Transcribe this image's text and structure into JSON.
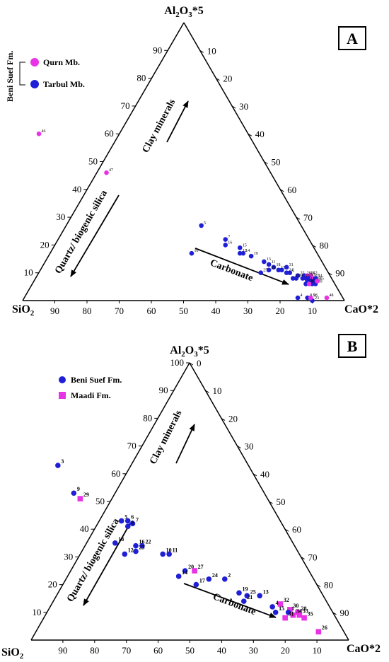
{
  "colors": {
    "blue": "#1f1fd6",
    "magenta": "#e832e6",
    "axis": "#000000"
  },
  "chart_data": [
    {
      "type": "ternary",
      "panel_label": "A",
      "apex_top": "Al2O3*5",
      "apex_left": "SiO2",
      "apex_right": "CaO*2",
      "top_ticks": [
        "10",
        "20",
        "30",
        "40",
        "50",
        "60",
        "70",
        "80",
        "90"
      ],
      "left_ticks": [
        "10",
        "20",
        "30",
        "40",
        "50",
        "60",
        "70",
        "80",
        "90"
      ],
      "bottom_ticks": [
        "90",
        "80",
        "70",
        "60",
        "50",
        "40",
        "30",
        "20",
        "10"
      ],
      "arrows": [
        "Clay minerals",
        "Quartz/ biogenic silica",
        "Carbonate"
      ],
      "legend": {
        "group": "Beni Suef Fm.",
        "items": [
          {
            "name": "Qurn Mb.",
            "marker": "circle",
            "color": "magenta"
          },
          {
            "name": "Tarbul Mb.",
            "marker": "circle",
            "color": "blue"
          }
        ]
      },
      "points": [
        {
          "id": "46",
          "a": 60,
          "s": 65,
          "c": "magenta"
        },
        {
          "id": "47",
          "a": 46,
          "s": 51,
          "c": "magenta"
        },
        {
          "id": "5",
          "a": 27,
          "s": 31,
          "c": "blue"
        },
        {
          "id": "7",
          "a": 22,
          "s": 26,
          "c": "blue"
        },
        {
          "id": "16",
          "a": 20,
          "s": 27,
          "c": "blue"
        },
        {
          "id": "15",
          "a": 19,
          "s": 23,
          "c": "blue"
        },
        {
          "id": "10",
          "a": 17,
          "s": 39,
          "c": "blue"
        },
        {
          "id": "12",
          "a": 17,
          "s": 24,
          "c": "blue"
        },
        {
          "id": "14",
          "a": 17,
          "s": 23,
          "c": "blue"
        },
        {
          "id": "19",
          "a": 16,
          "s": 21,
          "c": "blue"
        },
        {
          "id": "13",
          "a": 14,
          "s": 18,
          "c": "blue"
        },
        {
          "id": "11",
          "a": 13,
          "s": 17,
          "c": "blue"
        },
        {
          "id": "18",
          "a": 12,
          "s": 16,
          "c": "blue"
        },
        {
          "id": "25",
          "a": 10,
          "s": 21,
          "c": "blue"
        },
        {
          "id": "22",
          "a": 11,
          "s": 18,
          "c": "blue"
        },
        {
          "id": "3",
          "a": 11,
          "s": 14,
          "c": "blue"
        },
        {
          "id": "17",
          "a": 11,
          "s": 15,
          "c": "blue"
        },
        {
          "id": "31",
          "a": 12,
          "s": 12,
          "c": "blue"
        },
        {
          "id": "2",
          "a": 10,
          "s": 12,
          "c": "blue"
        },
        {
          "id": "24",
          "a": 10,
          "s": 13,
          "c": "blue"
        },
        {
          "id": "32",
          "a": 9,
          "s": 10,
          "c": "blue"
        },
        {
          "id": "26",
          "a": 9,
          "s": 8,
          "c": "blue"
        },
        {
          "id": "40",
          "a": 9,
          "s": 7,
          "c": "magenta"
        },
        {
          "id": "42",
          "a": 9,
          "s": 6,
          "c": "magenta"
        },
        {
          "id": "27",
          "a": 8,
          "s": 8,
          "c": "blue"
        },
        {
          "id": "29",
          "a": 8,
          "s": 11,
          "c": "blue"
        },
        {
          "id": "21",
          "a": 8,
          "s": 12,
          "c": "blue"
        },
        {
          "id": "30",
          "a": 8,
          "s": 9,
          "c": "blue"
        },
        {
          "id": "35",
          "a": 8,
          "s": 7,
          "c": "blue"
        },
        {
          "id": "37",
          "a": 8,
          "s": 6,
          "c": "magenta"
        },
        {
          "id": "38",
          "a": 7,
          "s": 6,
          "c": "blue"
        },
        {
          "id": "41",
          "a": 7,
          "s": 7,
          "c": "blue"
        },
        {
          "id": "44",
          "a": 8,
          "s": 5,
          "c": "blue"
        },
        {
          "id": "33",
          "a": 7,
          "s": 8,
          "c": "blue"
        },
        {
          "id": "34",
          "a": 6,
          "s": 9,
          "c": "blue"
        },
        {
          "id": "36",
          "a": 6,
          "s": 7,
          "c": "blue"
        },
        {
          "id": "39",
          "a": 6,
          "s": 6,
          "c": "blue"
        },
        {
          "id": "43",
          "a": 6,
          "s": 8,
          "c": "magenta"
        },
        {
          "id": "45",
          "a": 7,
          "s": 5,
          "c": "magenta"
        },
        {
          "id": "4",
          "a": 1,
          "s": 14,
          "c": "blue"
        },
        {
          "id": "28",
          "a": 1,
          "s": 10,
          "c": "blue"
        },
        {
          "id": "23",
          "a": 0,
          "s": 10,
          "c": "blue"
        },
        {
          "id": "8",
          "a": 1,
          "s": 11,
          "c": "blue"
        },
        {
          "id": "9",
          "a": 1,
          "s": 10,
          "c": "magenta"
        },
        {
          "id": "48",
          "a": 1,
          "s": 5,
          "c": "magenta"
        }
      ]
    },
    {
      "type": "ternary",
      "panel_label": "B",
      "apex_top": "Al2O3*5",
      "apex_left": "SiO2",
      "apex_right": "CaO*2",
      "top_ticks": [
        "0",
        "10",
        "20",
        "30",
        "40",
        "50",
        "60",
        "70",
        "80",
        "90"
      ],
      "left_ticks": [
        "10",
        "20",
        "30",
        "40",
        "50",
        "60",
        "70",
        "80",
        "90",
        "100"
      ],
      "bottom_ticks": [
        "90",
        "80",
        "70",
        "60",
        "50",
        "40",
        "30",
        "20",
        "10"
      ],
      "arrows": [
        "Clay minerals",
        "Quartz/ biogenic silica",
        "Carbonate"
      ],
      "legend": {
        "items": [
          {
            "name": "Beni Suef Fm.",
            "marker": "circle",
            "color": "blue"
          },
          {
            "name": "Maadi Fm.",
            "marker": "square",
            "color": "magenta"
          }
        ]
      },
      "points": [
        {
          "id": "3",
          "a": 63,
          "s": 60,
          "c": "blue"
        },
        {
          "id": "9",
          "a": 53,
          "s": 60,
          "c": "blue"
        },
        {
          "id": "29",
          "a": 51,
          "s": 59,
          "c": "magenta"
        },
        {
          "id": "5",
          "a": 43,
          "s": 50,
          "c": "blue"
        },
        {
          "id": "6",
          "a": 43,
          "s": 48,
          "c": "blue"
        },
        {
          "id": "7",
          "a": 42,
          "s": 47,
          "c": "blue"
        },
        {
          "id": "8",
          "a": 41,
          "s": 49,
          "c": "blue"
        },
        {
          "id": "18",
          "a": 35,
          "s": 56,
          "c": "blue"
        },
        {
          "id": "16",
          "a": 34,
          "s": 50,
          "c": "blue"
        },
        {
          "id": "22",
          "a": 34,
          "s": 48,
          "c": "blue"
        },
        {
          "id": "23",
          "a": 32,
          "s": 51,
          "c": "blue"
        },
        {
          "id": "12",
          "a": 31,
          "s": 55,
          "c": "blue"
        },
        {
          "id": "10",
          "a": 31,
          "s": 43,
          "c": "blue"
        },
        {
          "id": "11",
          "a": 31,
          "s": 41,
          "c": "blue"
        },
        {
          "id": "20",
          "a": 25,
          "s": 39,
          "c": "blue"
        },
        {
          "id": "27",
          "a": 25,
          "s": 36,
          "c": "magenta"
        },
        {
          "id": "14",
          "a": 23,
          "s": 42,
          "c": "blue"
        },
        {
          "id": "24",
          "a": 22,
          "s": 33,
          "c": "blue"
        },
        {
          "id": "2",
          "a": 22,
          "s": 28,
          "c": "blue"
        },
        {
          "id": "17",
          "a": 20,
          "s": 38,
          "c": "blue"
        },
        {
          "id": "19",
          "a": 17,
          "s": 26,
          "c": "blue"
        },
        {
          "id": "25",
          "a": 16,
          "s": 24,
          "c": "blue"
        },
        {
          "id": "13",
          "a": 16,
          "s": 20,
          "c": "blue"
        },
        {
          "id": "21",
          "a": 14,
          "s": 26,
          "c": "blue"
        },
        {
          "id": "32",
          "a": 13,
          "s": 15,
          "c": "magenta"
        },
        {
          "id": "4",
          "a": 12,
          "s": 18,
          "c": "blue"
        },
        {
          "id": "15",
          "a": 10,
          "s": 18,
          "c": "blue"
        },
        {
          "id": "30",
          "a": 11,
          "s": 13,
          "c": "magenta"
        },
        {
          "id": "1",
          "a": 10,
          "s": 14,
          "c": "blue"
        },
        {
          "id": "28",
          "a": 10,
          "s": 11,
          "c": "magenta"
        },
        {
          "id": "33",
          "a": 9,
          "s": 11,
          "c": "magenta"
        },
        {
          "id": "34",
          "a": 9,
          "s": 13,
          "c": "magenta"
        },
        {
          "id": "31",
          "a": 8,
          "s": 16,
          "c": "magenta"
        },
        {
          "id": "35",
          "a": 8,
          "s": 10,
          "c": "magenta"
        },
        {
          "id": "26",
          "a": 3,
          "s": 8,
          "c": "magenta"
        }
      ]
    }
  ]
}
